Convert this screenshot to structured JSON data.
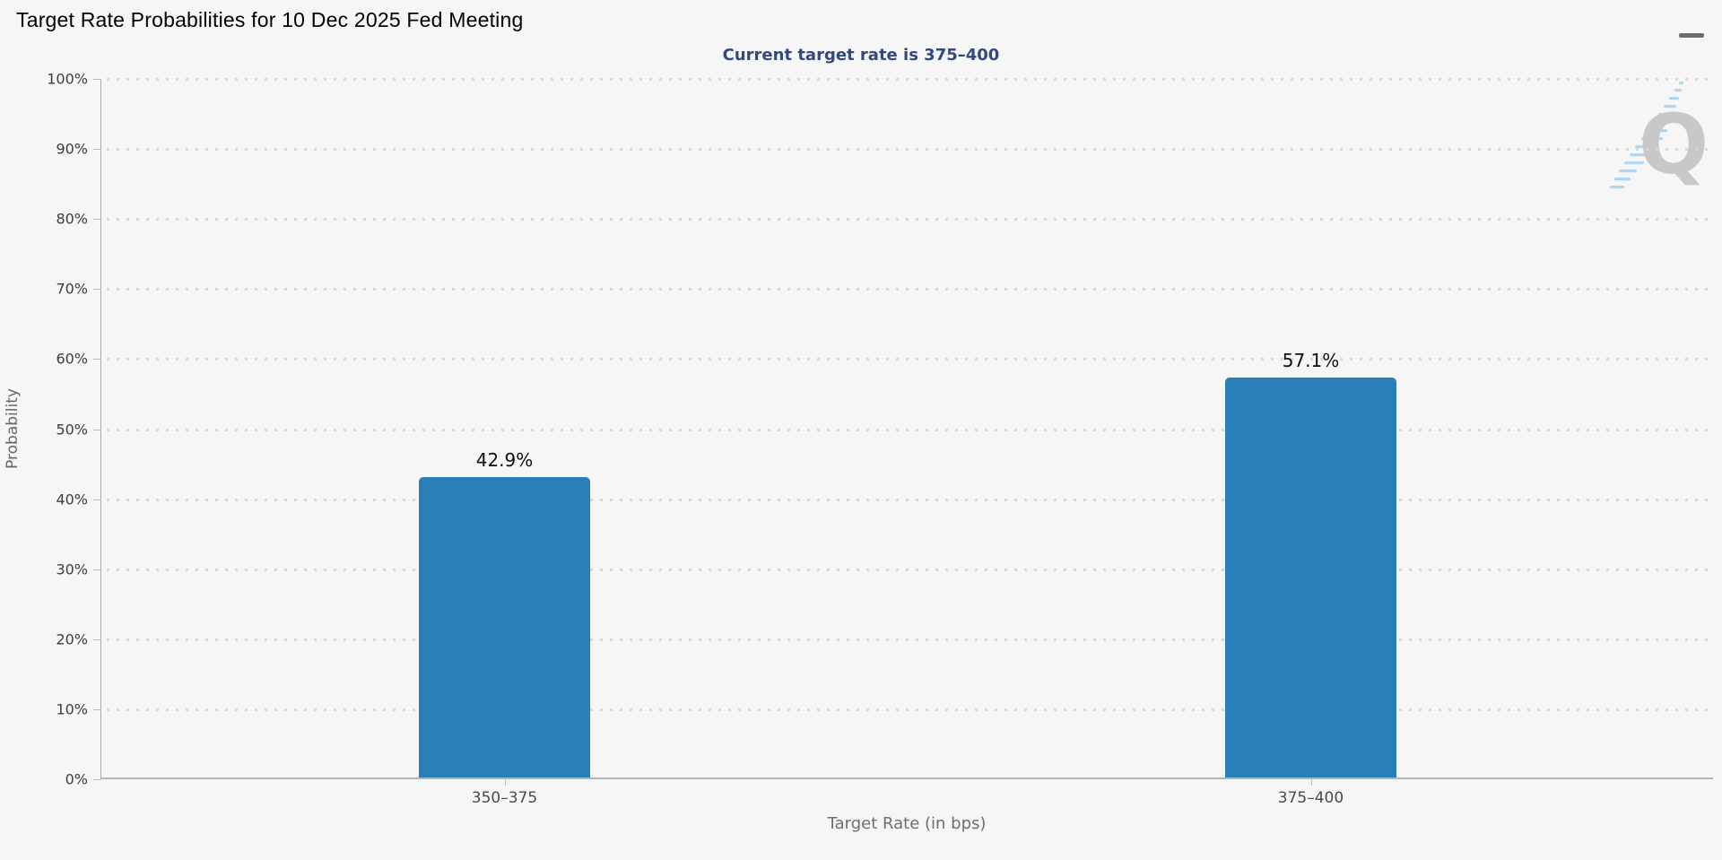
{
  "header": {
    "title": "Target Rate Probabilities for 10 Dec 2025 Fed Meeting",
    "subtitle": "Current target rate is 375–400"
  },
  "icons": {
    "menu": "hamburger-menu-icon",
    "watermark_letter": "Q"
  },
  "colors": {
    "background": "#f6f6f6",
    "bar": "#2b7fb8",
    "subtitle": "#33497c",
    "gridline": "#d8d8d8",
    "axis": "#b5b5b5",
    "watermark_gray": "#c8c8c8",
    "watermark_blue": "#aed7f2"
  },
  "chart_data": {
    "type": "bar",
    "categories": [
      "350–375",
      "375–400"
    ],
    "values": [
      42.9,
      57.1
    ],
    "value_labels": [
      "42.9%",
      "57.1%"
    ],
    "title": "Target Rate Probabilities for 10 Dec 2025 Fed Meeting",
    "subtitle": "Current target rate is 375–400",
    "xlabel": "Target Rate (in bps)",
    "ylabel": "Probability",
    "ylim": [
      0,
      100
    ],
    "ytick_step": 10,
    "ytick_labels": [
      "0%",
      "10%",
      "20%",
      "30%",
      "40%",
      "50%",
      "60%",
      "70%",
      "80%",
      "90%",
      "100%"
    ],
    "grid": "horizontal-dotted",
    "legend": "none"
  }
}
